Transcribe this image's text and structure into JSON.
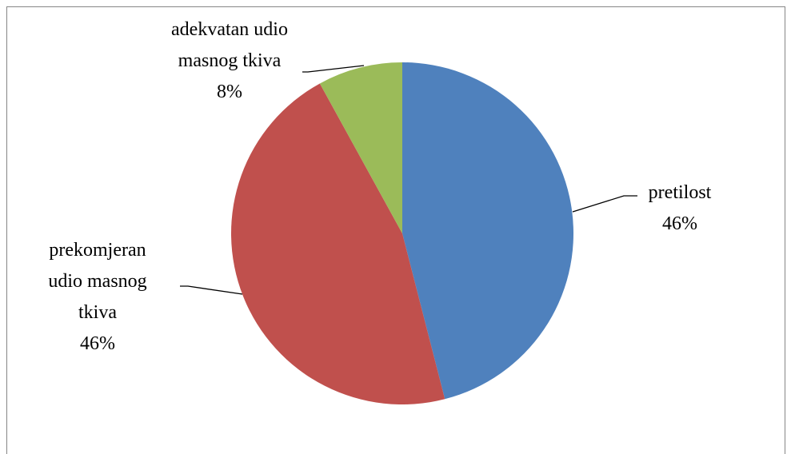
{
  "chart_data": {
    "type": "pie",
    "categories": [
      "pretilost",
      "prekomjeran udio masnog tkiva",
      "adekvatan udio masnog tkiva"
    ],
    "values": [
      46,
      46,
      8
    ],
    "value_labels": [
      "46%",
      "46%",
      "8%"
    ],
    "colors": [
      "#4f81bd",
      "#c0504d",
      "#9bbb59"
    ]
  }
}
